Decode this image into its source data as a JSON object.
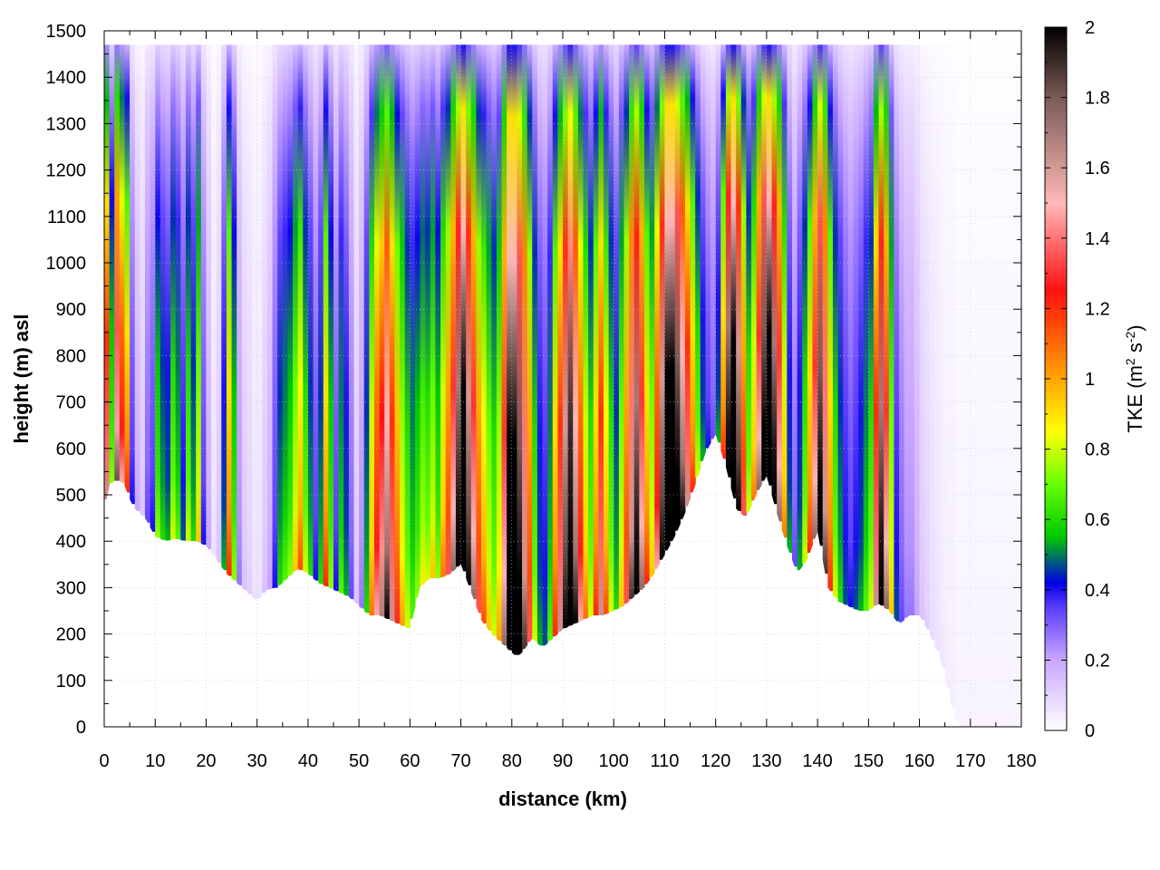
{
  "chart_data": {
    "type": "heatmap",
    "title": "",
    "xlabel": "distance (km)",
    "ylabel": "height (m) asl",
    "xlim": [
      0,
      180
    ],
    "ylim": [
      0,
      1500
    ],
    "x_ticks": [
      "0",
      "10",
      "20",
      "30",
      "40",
      "50",
      "60",
      "70",
      "80",
      "90",
      "100",
      "110",
      "120",
      "130",
      "140",
      "150",
      "160",
      "170",
      "180"
    ],
    "y_ticks": [
      "0",
      "100",
      "200",
      "300",
      "400",
      "500",
      "600",
      "700",
      "800",
      "900",
      "1000",
      "1100",
      "1200",
      "1300",
      "1400",
      "1500"
    ],
    "grid": true,
    "colorbar": {
      "label_parts": {
        "base": "TKE (m",
        "sup1": "2",
        "mid": " s",
        "sup2": "-2",
        "end": ")"
      },
      "range": [
        0,
        2
      ],
      "ticks": [
        "0",
        "0.2",
        "0.4",
        "0.6",
        "0.8",
        "1",
        "1.2",
        "1.4",
        "1.6",
        "1.8",
        "2"
      ],
      "colors": [
        {
          "v": 0.0,
          "c": "#ffffff"
        },
        {
          "v": 0.2,
          "c": "#c9a6ff"
        },
        {
          "v": 0.35,
          "c": "#5a3cff"
        },
        {
          "v": 0.42,
          "c": "#0000e6"
        },
        {
          "v": 0.55,
          "c": "#00c800"
        },
        {
          "v": 0.7,
          "c": "#66ff00"
        },
        {
          "v": 0.85,
          "c": "#ffff00"
        },
        {
          "v": 1.0,
          "c": "#ffa500"
        },
        {
          "v": 1.25,
          "c": "#ff1010"
        },
        {
          "v": 1.5,
          "c": "#ffb8b8"
        },
        {
          "v": 1.8,
          "c": "#7a5a55"
        },
        {
          "v": 2.0,
          "c": "#000000"
        }
      ]
    },
    "terrain": {
      "x": [
        0,
        1,
        2,
        3,
        4,
        5,
        6,
        7,
        8,
        10,
        12,
        14,
        16,
        18,
        20,
        22,
        24,
        26,
        28,
        30,
        32,
        34,
        36,
        38,
        40,
        42,
        44,
        46,
        48,
        50,
        52,
        54,
        56,
        58,
        60,
        62,
        64,
        66,
        68,
        70,
        72,
        74,
        76,
        78,
        80,
        81,
        82,
        84,
        86,
        88,
        90,
        92,
        94,
        96,
        98,
        100,
        102,
        104,
        106,
        108,
        110,
        112,
        114,
        116,
        118,
        120,
        122,
        124,
        126,
        128,
        130,
        132,
        134,
        136,
        138,
        140,
        142,
        144,
        146,
        148,
        150,
        152,
        154,
        156,
        158,
        160,
        162,
        164,
        166,
        167,
        168,
        170,
        180
      ],
      "height": [
        460,
        520,
        530,
        530,
        520,
        490,
        470,
        460,
        450,
        410,
        400,
        405,
        400,
        400,
        390,
        360,
        330,
        310,
        290,
        270,
        295,
        300,
        320,
        340,
        330,
        310,
        300,
        290,
        280,
        260,
        240,
        240,
        230,
        220,
        210,
        300,
        320,
        320,
        330,
        350,
        290,
        230,
        200,
        180,
        160,
        150,
        160,
        190,
        170,
        190,
        210,
        220,
        230,
        240,
        240,
        250,
        260,
        280,
        300,
        330,
        370,
        410,
        460,
        520,
        590,
        630,
        560,
        470,
        450,
        500,
        540,
        460,
        390,
        330,
        360,
        420,
        300,
        270,
        260,
        250,
        250,
        265,
        250,
        220,
        240,
        240,
        200,
        150,
        60,
        20,
        0,
        0,
        0
      ]
    },
    "columns": [
      {
        "x": 0,
        "v": 1.2
      },
      {
        "x": 1,
        "v": 0.55
      },
      {
        "x": 2,
        "v": 1.35
      },
      {
        "x": 3,
        "v": 1.1
      },
      {
        "x": 4,
        "v": 0.9
      },
      {
        "x": 5,
        "v": 0.3
      },
      {
        "x": 6,
        "v": 0.15
      },
      {
        "x": 7,
        "v": 0.1
      },
      {
        "x": 8,
        "v": 0.25
      },
      {
        "x": 9,
        "v": 0.3
      },
      {
        "x": 10,
        "v": 0.55
      },
      {
        "x": 11,
        "v": 0.45
      },
      {
        "x": 12,
        "v": 0.4
      },
      {
        "x": 13,
        "v": 0.6
      },
      {
        "x": 14,
        "v": 0.5
      },
      {
        "x": 15,
        "v": 0.35
      },
      {
        "x": 16,
        "v": 0.6
      },
      {
        "x": 17,
        "v": 0.45
      },
      {
        "x": 18,
        "v": 0.7
      },
      {
        "x": 19,
        "v": 0.3
      },
      {
        "x": 20,
        "v": 0.15
      },
      {
        "x": 21,
        "v": 0.05
      },
      {
        "x": 22,
        "v": 0.1
      },
      {
        "x": 23,
        "v": 0.4
      },
      {
        "x": 24,
        "v": 0.9
      },
      {
        "x": 25,
        "v": 0.55
      },
      {
        "x": 26,
        "v": 0.2
      },
      {
        "x": 27,
        "v": 0.1
      },
      {
        "x": 28,
        "v": 0.08
      },
      {
        "x": 29,
        "v": 0.05
      },
      {
        "x": 30,
        "v": 0.05
      },
      {
        "x": 31,
        "v": 0.1
      },
      {
        "x": 32,
        "v": 0.15
      },
      {
        "x": 33,
        "v": 0.3
      },
      {
        "x": 34,
        "v": 0.45
      },
      {
        "x": 35,
        "v": 0.5
      },
      {
        "x": 36,
        "v": 0.55
      },
      {
        "x": 37,
        "v": 0.7
      },
      {
        "x": 38,
        "v": 0.85
      },
      {
        "x": 39,
        "v": 0.6
      },
      {
        "x": 40,
        "v": 0.45
      },
      {
        "x": 41,
        "v": 0.3
      },
      {
        "x": 42,
        "v": 0.45
      },
      {
        "x": 43,
        "v": 0.9
      },
      {
        "x": 44,
        "v": 0.55
      },
      {
        "x": 45,
        "v": 0.3
      },
      {
        "x": 46,
        "v": 0.5
      },
      {
        "x": 47,
        "v": 0.4
      },
      {
        "x": 48,
        "v": 0.25
      },
      {
        "x": 49,
        "v": 0.1
      },
      {
        "x": 50,
        "v": 0.2
      },
      {
        "x": 51,
        "v": 0.45
      },
      {
        "x": 52,
        "v": 0.8
      },
      {
        "x": 53,
        "v": 1.1
      },
      {
        "x": 54,
        "v": 1.25
      },
      {
        "x": 55,
        "v": 1.5
      },
      {
        "x": 56,
        "v": 1.2
      },
      {
        "x": 57,
        "v": 0.95
      },
      {
        "x": 58,
        "v": 0.75
      },
      {
        "x": 59,
        "v": 0.6
      },
      {
        "x": 60,
        "v": 0.5
      },
      {
        "x": 61,
        "v": 0.55
      },
      {
        "x": 62,
        "v": 0.65
      },
      {
        "x": 63,
        "v": 0.6
      },
      {
        "x": 64,
        "v": 0.7
      },
      {
        "x": 65,
        "v": 0.55
      },
      {
        "x": 66,
        "v": 0.8
      },
      {
        "x": 67,
        "v": 1.0
      },
      {
        "x": 68,
        "v": 1.3
      },
      {
        "x": 69,
        "v": 1.7
      },
      {
        "x": 70,
        "v": 2.0
      },
      {
        "x": 71,
        "v": 1.6
      },
      {
        "x": 72,
        "v": 1.3
      },
      {
        "x": 73,
        "v": 1.0
      },
      {
        "x": 74,
        "v": 0.85
      },
      {
        "x": 75,
        "v": 0.7
      },
      {
        "x": 76,
        "v": 0.6
      },
      {
        "x": 77,
        "v": 0.75
      },
      {
        "x": 78,
        "v": 1.3
      },
      {
        "x": 79,
        "v": 2.0
      },
      {
        "x": 80,
        "v": 2.0
      },
      {
        "x": 81,
        "v": 1.8
      },
      {
        "x": 82,
        "v": 1.4
      },
      {
        "x": 83,
        "v": 1.0
      },
      {
        "x": 84,
        "v": 0.6
      },
      {
        "x": 85,
        "v": 0.4
      },
      {
        "x": 86,
        "v": 0.35
      },
      {
        "x": 87,
        "v": 0.5
      },
      {
        "x": 88,
        "v": 0.9
      },
      {
        "x": 89,
        "v": 1.2
      },
      {
        "x": 90,
        "v": 1.6
      },
      {
        "x": 91,
        "v": 1.9
      },
      {
        "x": 92,
        "v": 1.5
      },
      {
        "x": 93,
        "v": 1.1
      },
      {
        "x": 94,
        "v": 0.8
      },
      {
        "x": 95,
        "v": 0.6
      },
      {
        "x": 96,
        "v": 0.9
      },
      {
        "x": 97,
        "v": 1.2
      },
      {
        "x": 98,
        "v": 0.85
      },
      {
        "x": 99,
        "v": 0.6
      },
      {
        "x": 100,
        "v": 0.45
      },
      {
        "x": 101,
        "v": 0.7
      },
      {
        "x": 102,
        "v": 1.0
      },
      {
        "x": 103,
        "v": 1.4
      },
      {
        "x": 104,
        "v": 1.7
      },
      {
        "x": 105,
        "v": 1.3
      },
      {
        "x": 106,
        "v": 0.9
      },
      {
        "x": 107,
        "v": 0.7
      },
      {
        "x": 108,
        "v": 1.1
      },
      {
        "x": 109,
        "v": 1.6
      },
      {
        "x": 110,
        "v": 2.0
      },
      {
        "x": 111,
        "v": 2.0
      },
      {
        "x": 112,
        "v": 1.8
      },
      {
        "x": 113,
        "v": 1.5
      },
      {
        "x": 114,
        "v": 1.2
      },
      {
        "x": 115,
        "v": 0.9
      },
      {
        "x": 116,
        "v": 0.6
      },
      {
        "x": 117,
        "v": 0.4
      },
      {
        "x": 118,
        "v": 0.3
      },
      {
        "x": 119,
        "v": 0.25
      },
      {
        "x": 120,
        "v": 0.4
      },
      {
        "x": 121,
        "v": 0.9
      },
      {
        "x": 122,
        "v": 1.7
      },
      {
        "x": 123,
        "v": 2.0
      },
      {
        "x": 124,
        "v": 1.6
      },
      {
        "x": 125,
        "v": 1.0
      },
      {
        "x": 126,
        "v": 0.6
      },
      {
        "x": 127,
        "v": 0.8
      },
      {
        "x": 128,
        "v": 1.3
      },
      {
        "x": 129,
        "v": 1.8
      },
      {
        "x": 130,
        "v": 2.0
      },
      {
        "x": 131,
        "v": 1.7
      },
      {
        "x": 132,
        "v": 1.3
      },
      {
        "x": 133,
        "v": 0.8
      },
      {
        "x": 134,
        "v": 0.4
      },
      {
        "x": 135,
        "v": 0.25
      },
      {
        "x": 136,
        "v": 0.4
      },
      {
        "x": 137,
        "v": 0.6
      },
      {
        "x": 138,
        "v": 0.9
      },
      {
        "x": 139,
        "v": 1.3
      },
      {
        "x": 140,
        "v": 1.8
      },
      {
        "x": 141,
        "v": 1.4
      },
      {
        "x": 142,
        "v": 0.9
      },
      {
        "x": 143,
        "v": 0.6
      },
      {
        "x": 144,
        "v": 0.45
      },
      {
        "x": 145,
        "v": 0.35
      },
      {
        "x": 146,
        "v": 0.3
      },
      {
        "x": 147,
        "v": 0.35
      },
      {
        "x": 148,
        "v": 0.4
      },
      {
        "x": 149,
        "v": 0.5
      },
      {
        "x": 150,
        "v": 0.6
      },
      {
        "x": 151,
        "v": 1.2
      },
      {
        "x": 152,
        "v": 1.7
      },
      {
        "x": 153,
        "v": 1.3
      },
      {
        "x": 154,
        "v": 0.7
      },
      {
        "x": 155,
        "v": 0.35
      },
      {
        "x": 156,
        "v": 0.25
      },
      {
        "x": 157,
        "v": 0.2
      },
      {
        "x": 158,
        "v": 0.2
      },
      {
        "x": 159,
        "v": 0.15
      },
      {
        "x": 160,
        "v": 0.1
      },
      {
        "x": 161,
        "v": 0.08
      },
      {
        "x": 162,
        "v": 0.06
      },
      {
        "x": 163,
        "v": 0.05
      },
      {
        "x": 164,
        "v": 0.04
      },
      {
        "x": 165,
        "v": 0.03
      },
      {
        "x": 166,
        "v": 0.03
      },
      {
        "x": 167,
        "v": 0.02
      },
      {
        "x": 168,
        "v": 0.02
      },
      {
        "x": 169,
        "v": 0.02
      },
      {
        "x": 170,
        "v": 0.02
      },
      {
        "x": 172,
        "v": 0.02
      },
      {
        "x": 174,
        "v": 0.02
      },
      {
        "x": 176,
        "v": 0.02
      },
      {
        "x": 178,
        "v": 0.02
      }
    ]
  }
}
